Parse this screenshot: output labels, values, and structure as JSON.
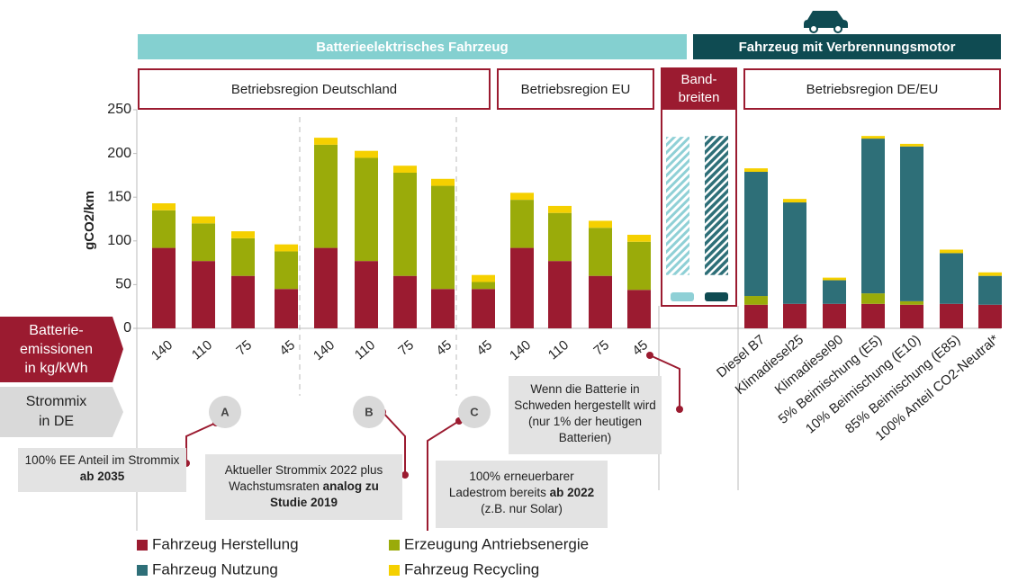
{
  "chart_data": {
    "type": "bar",
    "stacked": true,
    "y_label": "gCO2/km",
    "ylim": [
      0,
      250
    ],
    "yticks": [
      0,
      50,
      100,
      150,
      200,
      250
    ],
    "categories": [
      "140",
      "110",
      "75",
      "45",
      "140",
      "110",
      "75",
      "45",
      "45",
      "140",
      "110",
      "75",
      "45",
      "Diesel B7",
      "Klimadiesel25",
      "Klimadiesel90",
      "5% Beimischung (E5)",
      "10% Beimischung (E10)",
      "85% Beimischung (E85)",
      "100% Anteil CO2-Neutral*"
    ],
    "series": [
      {
        "name": "Fahrzeug Herstellung",
        "color": "#9b1b30",
        "values": [
          92,
          77,
          60,
          45,
          92,
          77,
          60,
          45,
          45,
          92,
          77,
          60,
          44,
          27,
          28,
          28,
          28,
          27,
          28,
          27
        ]
      },
      {
        "name": "Erzeugung Antriebsenergie",
        "color": "#9aab0a",
        "values": [
          43,
          43,
          43,
          43,
          118,
          118,
          118,
          118,
          8,
          55,
          55,
          55,
          55,
          10,
          null,
          null,
          12,
          4,
          null,
          null
        ]
      },
      {
        "name": "Fahrzeug Nutzung",
        "color": "#2e6f78",
        "values": [
          null,
          null,
          null,
          null,
          null,
          null,
          null,
          null,
          null,
          null,
          null,
          null,
          null,
          142,
          116,
          27,
          177,
          177,
          58,
          33
        ]
      },
      {
        "name": "Fahrzeug Recycling",
        "color": "#f5d000",
        "values": [
          8,
          8,
          8,
          8,
          8,
          8,
          8,
          8,
          8,
          8,
          8,
          8,
          8,
          4,
          4,
          3,
          3,
          3,
          4,
          4
        ]
      }
    ],
    "bandwidths": [
      {
        "color": "#8fd0d6",
        "low": 61,
        "high": 219
      },
      {
        "color": "#2e6f78",
        "low": 61,
        "high": 220
      }
    ],
    "groups": [
      "Batterieelektrisches Fahrzeug",
      "Fahrzeug mit Verbrennungsmotor"
    ],
    "regions": [
      "Betriebsregion Deutschland",
      "Betriebsregion EU",
      "Band-\nbreiten",
      "Betriebsregion DE/EU"
    ],
    "row_labels": [
      "Batterie-\nemissionen\nin kg/kWh",
      "Strommix\nin DE"
    ],
    "markers": [
      "A",
      "B",
      "C"
    ],
    "notes": [
      {
        "text": "100% EE Anteil im Strommix",
        "bold": "ab 2035"
      },
      {
        "text": "Aktueller Strommix 2022 plus Wachstumsraten",
        "bold": "analog zu Studie 2019"
      },
      {
        "text": "100% erneuerbarer Ladestrom bereits",
        "bold": "ab 2022",
        "tail": "(z.B. nur Solar)"
      },
      {
        "text": "Wenn die Batterie in Schweden hergestellt wird (nur 1% der heutigen Batterien)"
      }
    ]
  }
}
